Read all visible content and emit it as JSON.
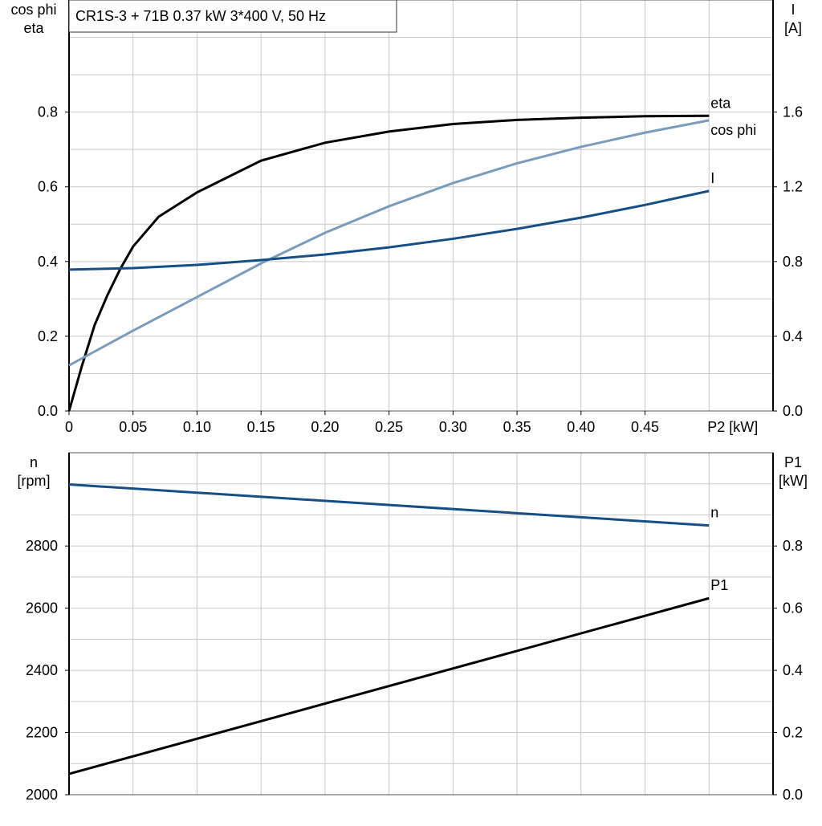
{
  "title": "CR1S-3 + 71B   0.37 kW   3*400 V, 50 Hz",
  "colors": {
    "eta": "#000000",
    "cos_phi": "#7a9cbc",
    "I": "#164e86",
    "n": "#164e86",
    "P1": "#000000",
    "grid": "#c8c8c8"
  },
  "chart_data": [
    {
      "type": "line",
      "left_axis_label": [
        "cos phi",
        "eta"
      ],
      "right_axis_label": [
        "I",
        "[A]"
      ],
      "xlabel": "P2 [kW]",
      "xlim": [
        0,
        0.55
      ],
      "ylim_left": [
        0,
        1.1
      ],
      "ylim_right": [
        0,
        2.2
      ],
      "x_ticks": [
        "0",
        "0.05",
        "0.10",
        "0.15",
        "0.20",
        "0.25",
        "0.30",
        "0.35",
        "0.40",
        "0.45"
      ],
      "y_ticks_left": [
        "0.0",
        "0.2",
        "0.4",
        "0.6",
        "0.8"
      ],
      "y_ticks_right": [
        "0.0",
        "0.4",
        "0.8",
        "1.2",
        "1.6"
      ],
      "grid": true,
      "series": [
        {
          "name": "eta",
          "axis": "left",
          "x": [
            0,
            0.01,
            0.02,
            0.03,
            0.04,
            0.05,
            0.07,
            0.1,
            0.15,
            0.2,
            0.25,
            0.3,
            0.35,
            0.4,
            0.45,
            0.5
          ],
          "y": [
            0,
            0.12,
            0.23,
            0.31,
            0.38,
            0.44,
            0.52,
            0.585,
            0.67,
            0.718,
            0.748,
            0.768,
            0.779,
            0.785,
            0.789,
            0.79
          ]
        },
        {
          "name": "cos phi",
          "axis": "left",
          "x": [
            0,
            0.05,
            0.1,
            0.15,
            0.2,
            0.25,
            0.3,
            0.35,
            0.4,
            0.45,
            0.5
          ],
          "y": [
            0.122,
            0.215,
            0.305,
            0.395,
            0.477,
            0.548,
            0.61,
            0.663,
            0.707,
            0.745,
            0.778
          ]
        },
        {
          "name": "I",
          "axis": "right",
          "x": [
            0,
            0.05,
            0.1,
            0.15,
            0.2,
            0.25,
            0.3,
            0.35,
            0.4,
            0.45,
            0.5
          ],
          "y": [
            0.757,
            0.765,
            0.782,
            0.808,
            0.838,
            0.876,
            0.922,
            0.975,
            1.035,
            1.103,
            1.178
          ]
        }
      ]
    },
    {
      "type": "line",
      "left_axis_label": [
        "n",
        "[rpm]"
      ],
      "right_axis_label": [
        "P1",
        "[kW]"
      ],
      "xlim": [
        0,
        0.55
      ],
      "ylim_left": [
        2000,
        3100
      ],
      "ylim_right": [
        0,
        1.1
      ],
      "y_ticks_left": [
        "2000",
        "2200",
        "2400",
        "2600",
        "2800"
      ],
      "y_ticks_right": [
        "0.0",
        "0.2",
        "0.4",
        "0.6",
        "0.8"
      ],
      "grid": true,
      "series": [
        {
          "name": "n",
          "axis": "left",
          "x": [
            0,
            0.5
          ],
          "y": [
            2998,
            2866
          ]
        },
        {
          "name": "P1",
          "axis": "right",
          "x": [
            0,
            0.5
          ],
          "y": [
            0.067,
            0.632
          ]
        }
      ]
    }
  ]
}
